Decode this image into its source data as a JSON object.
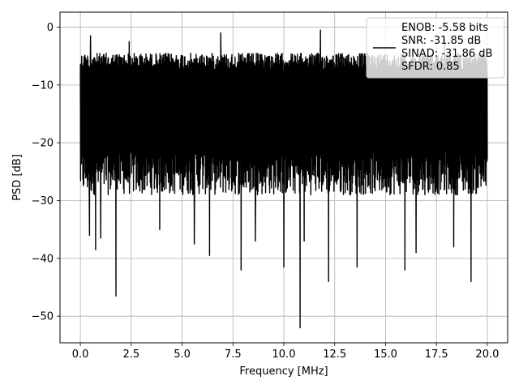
{
  "chart_data": {
    "type": "line",
    "title": "",
    "xlabel": "Frequency [MHz]",
    "ylabel": "PSD [dB]",
    "xlim": [
      -1.0,
      21.0
    ],
    "ylim": [
      -54.6,
      2.6
    ],
    "xticks": [
      0.0,
      2.5,
      5.0,
      7.5,
      10.0,
      12.5,
      15.0,
      17.5,
      20.0
    ],
    "xtick_labels": [
      "0.0",
      "2.5",
      "5.0",
      "7.5",
      "10.0",
      "12.5",
      "15.0",
      "17.5",
      "20.0"
    ],
    "yticks": [
      0,
      -10,
      -20,
      -30,
      -40,
      -50
    ],
    "ytick_labels": [
      "0",
      "−10",
      "−20",
      "−30",
      "−40",
      "−50"
    ],
    "grid": true,
    "legend_position": "top-right",
    "color": "#000000",
    "series": [
      {
        "name": "ENOB: -5.58 bits\nSNR: -31.85 dB\nSINAD: -31.86 dB\nSFDR: 0.85",
        "legend_lines": [
          "ENOB: -5.58 bits",
          "SNR: -31.85 dB",
          "SINAD: -31.86 dB",
          "SFDR: 0.85"
        ],
        "x_range": [
          0.0,
          20.0
        ],
        "upper_envelope_approx": -4.5,
        "typical_lower": -25.0,
        "notable_minima": [
          {
            "x": 0.45,
            "y": -36.0
          },
          {
            "x": 0.75,
            "y": -38.5
          },
          {
            "x": 1.0,
            "y": -36.5
          },
          {
            "x": 1.75,
            "y": -46.5
          },
          {
            "x": 2.4,
            "y": -40.5
          },
          {
            "x": 3.9,
            "y": -35.0
          },
          {
            "x": 5.6,
            "y": -37.5
          },
          {
            "x": 6.35,
            "y": -39.5
          },
          {
            "x": 7.9,
            "y": -42.0
          },
          {
            "x": 8.6,
            "y": -37.0
          },
          {
            "x": 10.0,
            "y": -41.5
          },
          {
            "x": 10.8,
            "y": -52.0
          },
          {
            "x": 11.0,
            "y": -37.0
          },
          {
            "x": 12.2,
            "y": -44.0
          },
          {
            "x": 13.6,
            "y": -41.5
          },
          {
            "x": 15.95,
            "y": -42.0
          },
          {
            "x": 16.5,
            "y": -39.0
          },
          {
            "x": 18.35,
            "y": -38.0
          },
          {
            "x": 19.2,
            "y": -44.0
          }
        ],
        "notable_maxima": [
          {
            "x": 0.5,
            "y": -1.5
          },
          {
            "x": 2.4,
            "y": -2.5
          },
          {
            "x": 6.9,
            "y": -1.0
          },
          {
            "x": 11.8,
            "y": -0.5
          },
          {
            "x": 17.9,
            "y": -2.0
          }
        ]
      }
    ]
  }
}
